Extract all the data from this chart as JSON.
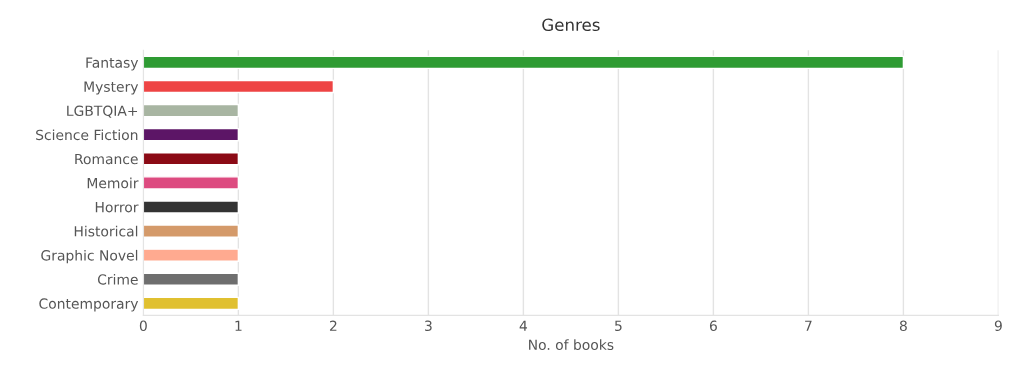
{
  "chart_data": {
    "type": "bar",
    "orientation": "horizontal",
    "title": "Genres",
    "xlabel": "No. of books",
    "categories": [
      "Fantasy",
      "Mystery",
      "LGBTQIA+",
      "Science Fiction",
      "Romance",
      "Memoir",
      "Horror",
      "Historical",
      "Graphic Novel",
      "Crime",
      "Contemporary"
    ],
    "values": [
      8,
      2,
      1,
      1,
      1,
      1,
      1,
      1,
      1,
      1,
      1
    ],
    "colors": [
      "#2e9b33",
      "#ee4444",
      "#a8b5a2",
      "#5c1566",
      "#8b0a15",
      "#dd4b80",
      "#333333",
      "#d49a6a",
      "#ffaa90",
      "#6e6e6e",
      "#e0c030"
    ],
    "xlim": [
      0,
      9
    ],
    "xticks": [
      0,
      1,
      2,
      3,
      4,
      5,
      6,
      7,
      8,
      9
    ],
    "grid": "x"
  }
}
